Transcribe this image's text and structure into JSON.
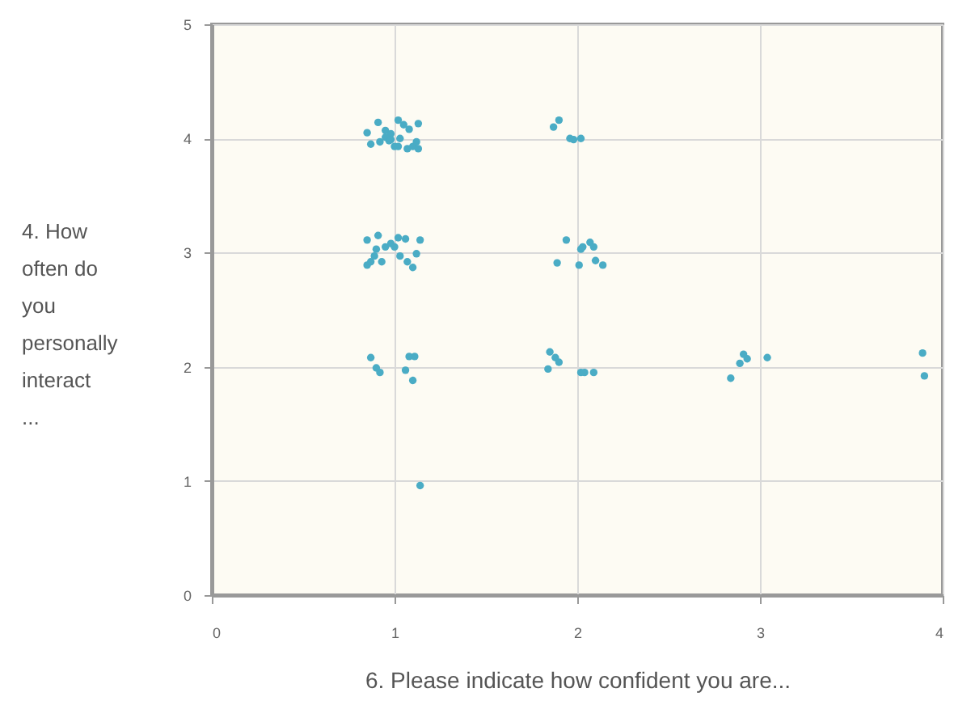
{
  "chart_data": {
    "type": "scatter",
    "xlabel": "6. Please indicate how confident you are...",
    "ylabel": "4. How often do you personally interact ...",
    "xlim": [
      0,
      4
    ],
    "xticks": [
      0,
      1,
      2,
      3,
      4
    ],
    "ylim": [
      0,
      5
    ],
    "yticks": [
      0,
      1,
      2,
      3,
      4,
      5
    ],
    "grid": true,
    "marker": "circle",
    "series": [
      {
        "color": "#4aacc5",
        "x": [
          0.85,
          0.91,
          0.95,
          0.98,
          1.02,
          1.05,
          1.08,
          1.13,
          0.87,
          0.92,
          0.97,
          1.0,
          1.03,
          1.07,
          1.1,
          1.13,
          1.12,
          0.95,
          0.98,
          1.02,
          0.85,
          0.91,
          0.95,
          1.0,
          1.02,
          1.06,
          1.14,
          0.85,
          0.87,
          0.9,
          0.93,
          0.98,
          1.03,
          1.07,
          1.1,
          1.12,
          0.89,
          0.87,
          0.9,
          0.92,
          1.06,
          1.08,
          1.11,
          1.1,
          1.14,
          1.87,
          1.9,
          1.96,
          1.98,
          2.02,
          1.94,
          1.89,
          2.01,
          2.03,
          2.07,
          2.09,
          2.1,
          2.14,
          2.02,
          1.85,
          1.88,
          1.9,
          1.84,
          2.02,
          2.04,
          2.09,
          2.84,
          2.89,
          2.91,
          2.93,
          3.04,
          3.89,
          3.9
        ],
        "values": [
          4.05,
          4.14,
          4.07,
          4.04,
          4.16,
          4.12,
          4.08,
          4.13,
          3.95,
          3.97,
          3.98,
          3.93,
          4.0,
          3.91,
          3.93,
          3.91,
          3.97,
          4.01,
          3.99,
          3.93,
          3.11,
          3.15,
          3.05,
          3.05,
          3.13,
          3.12,
          3.11,
          2.89,
          2.92,
          3.03,
          2.92,
          3.08,
          2.97,
          2.92,
          2.87,
          2.99,
          2.97,
          2.08,
          1.99,
          1.95,
          1.97,
          2.09,
          2.09,
          1.88,
          0.96,
          4.1,
          4.16,
          4.0,
          3.99,
          4.0,
          3.11,
          2.91,
          2.89,
          3.05,
          3.09,
          3.05,
          2.93,
          2.89,
          3.03,
          2.13,
          2.08,
          2.04,
          1.98,
          1.95,
          1.95,
          1.95,
          1.9,
          2.03,
          2.11,
          2.07,
          2.08,
          2.12,
          1.92
        ]
      }
    ]
  }
}
